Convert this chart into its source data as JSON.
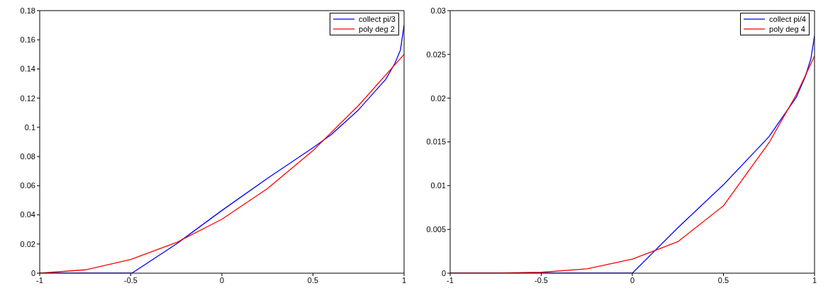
{
  "chart_data": [
    {
      "type": "line",
      "xlim": [
        -1,
        1
      ],
      "xticks": [
        -1,
        -0.5,
        0,
        0.5,
        1
      ],
      "ylim": [
        0,
        0.18
      ],
      "yticks": [
        0,
        0.02,
        0.04,
        0.06,
        0.08,
        0.1,
        0.12,
        0.14,
        0.16,
        0.18
      ],
      "legend": "top right",
      "grid": false,
      "series": [
        {
          "name": "collect pi/3",
          "color": "#0000ff",
          "x": [
            -1,
            -0.75,
            -0.494,
            -0.25,
            0,
            0.25,
            0.5,
            0.6,
            0.75,
            0.9,
            0.95,
            0.98,
            1
          ],
          "values": [
            0,
            0,
            0,
            0.02,
            0.043,
            0.065,
            0.086,
            0.095,
            0.112,
            0.133,
            0.144,
            0.153,
            0.17
          ]
        },
        {
          "name": "poly deg 2",
          "color": "#ff0000",
          "x": [
            -1,
            -0.75,
            -0.5,
            -0.25,
            0,
            0.25,
            0.5,
            0.75,
            1
          ],
          "values": [
            0,
            0.0023,
            0.0094,
            0.021,
            0.037,
            0.058,
            0.084,
            0.115,
            0.15
          ]
        }
      ]
    },
    {
      "type": "line",
      "xlim": [
        -1,
        1
      ],
      "xticks": [
        -1,
        -0.5,
        0,
        0.5,
        1
      ],
      "ylim": [
        0,
        0.03
      ],
      "yticks": [
        0,
        0.005,
        0.01,
        0.015,
        0.02,
        0.025,
        0.03
      ],
      "legend": "top right",
      "grid": false,
      "series": [
        {
          "name": "collect pi/4",
          "color": "#0000ff",
          "x": [
            -1,
            -0.5,
            0,
            0.25,
            0.5,
            0.75,
            0.9,
            0.95,
            0.98,
            1
          ],
          "values": [
            0,
            0,
            0,
            0.0052,
            0.0101,
            0.0156,
            0.0201,
            0.0225,
            0.0245,
            0.0271
          ]
        },
        {
          "name": "poly deg 4",
          "color": "#ff0000",
          "x": [
            -1,
            -0.75,
            -0.5,
            -0.25,
            0,
            0.15,
            0.25,
            0.5,
            0.75,
            0.9,
            1
          ],
          "values": [
            0,
            0,
            0.0001,
            0.0005,
            0.0016,
            0.0028,
            0.0036,
            0.0077,
            0.0149,
            0.0204,
            0.0248
          ]
        }
      ]
    }
  ]
}
